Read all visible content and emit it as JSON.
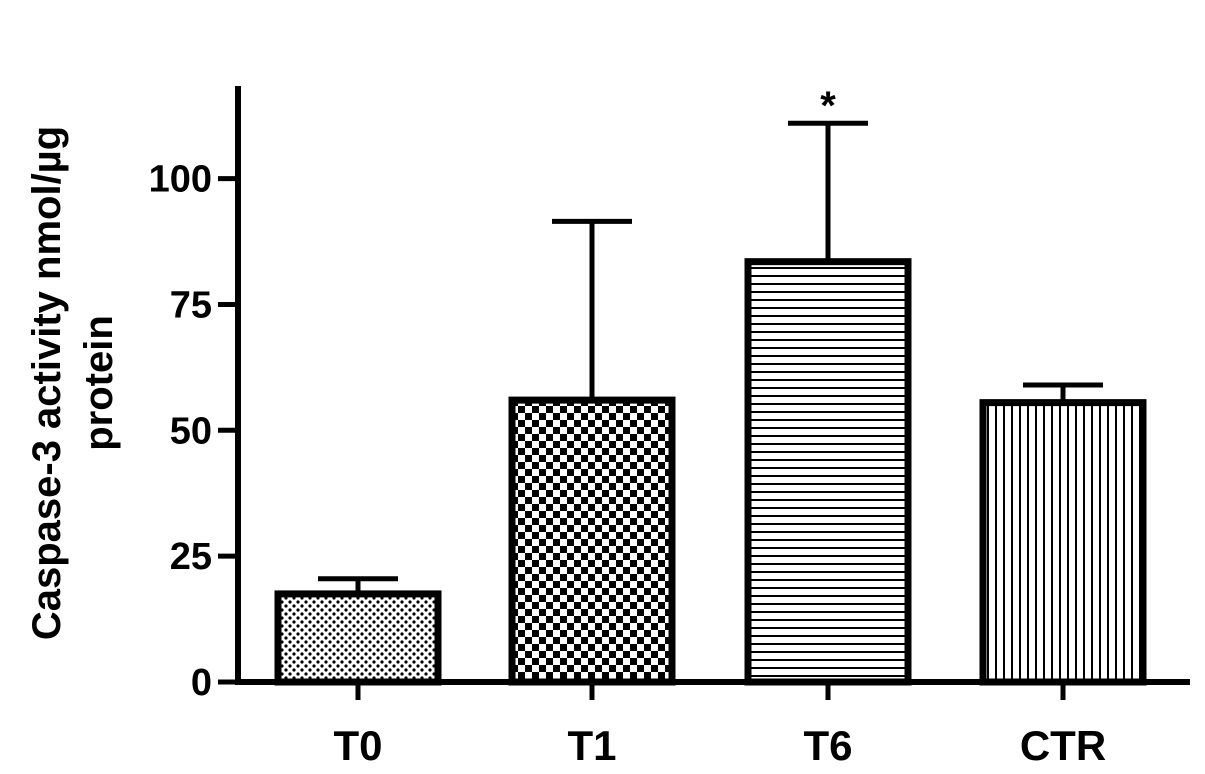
{
  "chart_data": {
    "type": "bar",
    "ylabel_lines": [
      "Caspase-3 activity nmol/µg",
      "protein"
    ],
    "xlabel": "",
    "categories": [
      "T0",
      "T1",
      "T6",
      "CTR"
    ],
    "values": [
      17.5,
      56,
      83.5,
      55.5
    ],
    "error_upper": [
      20.5,
      91.5,
      111,
      59
    ],
    "significance": [
      "",
      "",
      "*",
      ""
    ],
    "patterns": [
      "dots",
      "checker",
      "horizontal-lines",
      "vertical-lines"
    ],
    "ylim": [
      0,
      118
    ],
    "yticks": [
      0,
      25,
      50,
      75,
      100
    ],
    "grid": false,
    "colors": {
      "bar_stroke": "#000000",
      "fill_background": "#ffffff"
    }
  }
}
